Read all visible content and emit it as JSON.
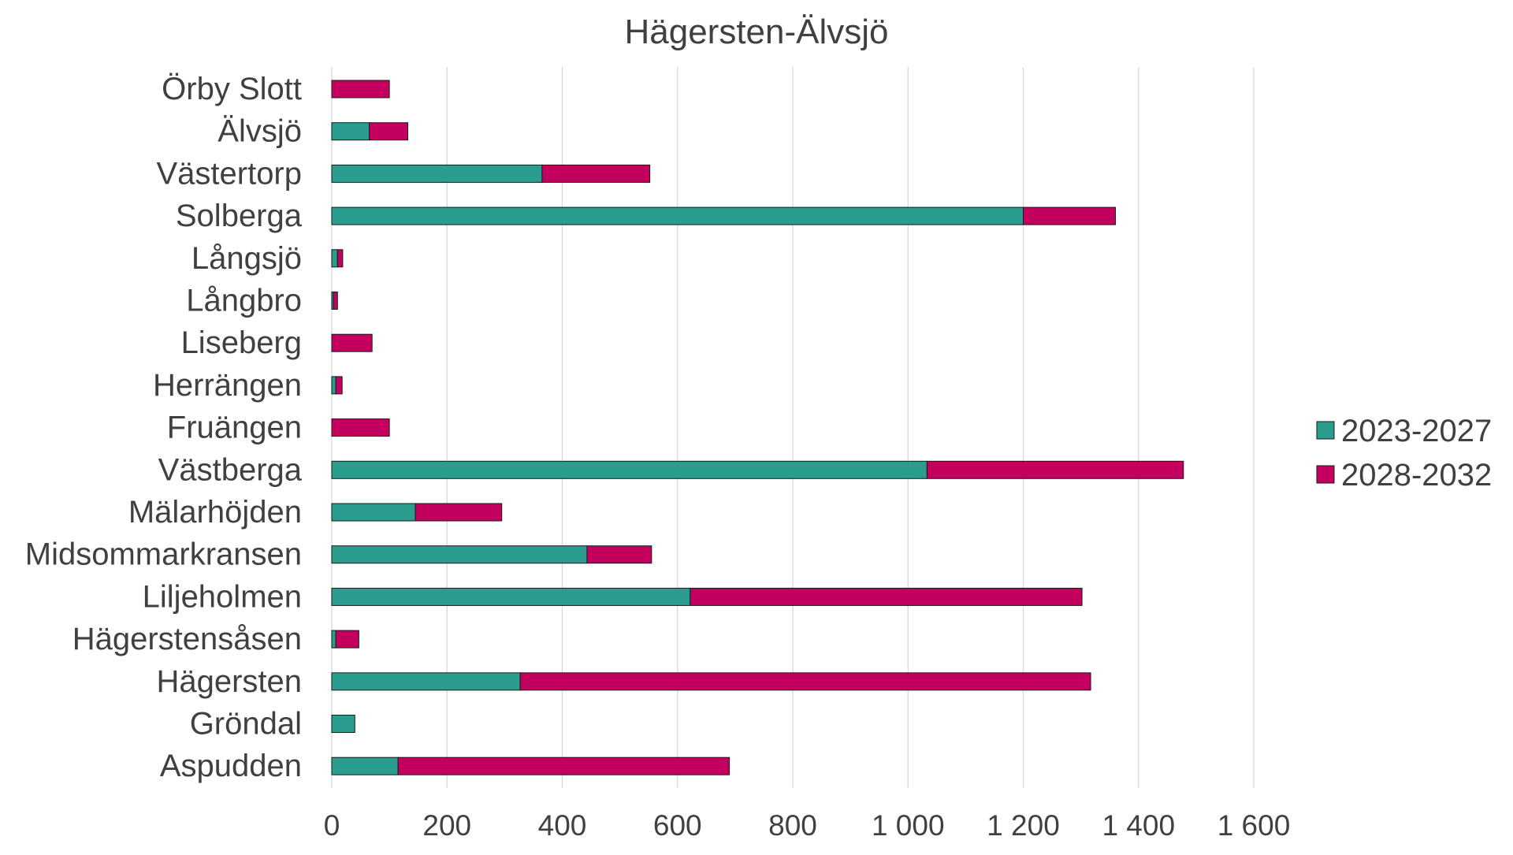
{
  "chart_data": {
    "type": "bar",
    "orientation": "horizontal",
    "stacked": true,
    "title": "Hägersten-Älvsjö",
    "xlabel": "",
    "ylabel": "",
    "xlim": [
      0,
      1600
    ],
    "xticks": [
      0,
      200,
      400,
      600,
      800,
      1000,
      1200,
      1400,
      1600
    ],
    "xtick_labels": [
      "0",
      "200",
      "400",
      "600",
      "800",
      "1 000",
      "1 200",
      "1 400",
      "1 600"
    ],
    "grid": "vertical",
    "legend_position": "right",
    "categories": [
      "Örby Slott",
      "Älvsjö",
      "Västertorp",
      "Solberga",
      "Långsjö",
      "Långbro",
      "Liseberg",
      "Herrängen",
      "Fruängen",
      "Västberga",
      "Mälarhöjden",
      "Midsommarkransen",
      "Liljeholmen",
      "Hägerstensåsen",
      "Hägersten",
      "Gröndal",
      "Aspudden"
    ],
    "series": [
      {
        "name": "2023-2027",
        "color": "#2a9d8f",
        "values": [
          0,
          65,
          365,
          1200,
          10,
          3,
          0,
          7,
          0,
          1033,
          145,
          443,
          622,
          7,
          327,
          40,
          115
        ]
      },
      {
        "name": "2028-2032",
        "color": "#c4005f",
        "values": [
          100,
          67,
          187,
          160,
          9,
          7,
          70,
          11,
          100,
          445,
          150,
          112,
          680,
          40,
          990,
          0,
          575
        ]
      }
    ]
  }
}
